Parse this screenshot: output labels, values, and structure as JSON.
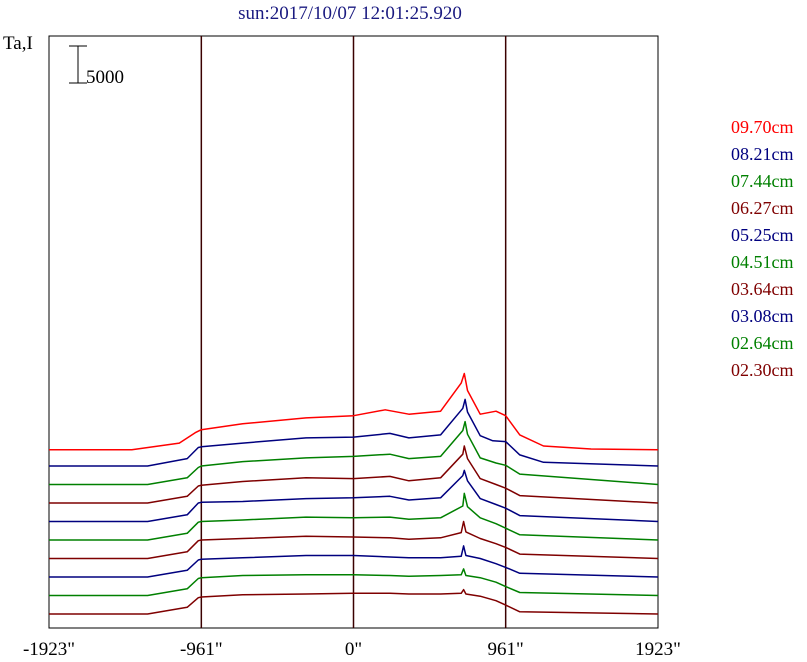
{
  "title": "sun:2017/10/07 12:01:25.920",
  "ylabel": "Ta,I",
  "scale_bar_label": "5000",
  "chart_data": {
    "type": "line",
    "title": "sun:2017/10/07 12:01:25.920",
    "ylabel": "Ta,I",
    "xlabel": "",
    "xlim": [
      -1923,
      1923
    ],
    "x_ticks": [
      {
        "value": -1923,
        "label": "-1923\""
      },
      {
        "value": -961,
        "label": "-961\""
      },
      {
        "value": 0,
        "label": "0\""
      },
      {
        "value": 961,
        "label": "961\""
      },
      {
        "value": 1923,
        "label": "1923\""
      }
    ],
    "vertical_lines": [
      -961,
      0,
      961
    ],
    "scale_bar": 5000,
    "grid": false,
    "legend_position": "right",
    "series": [
      {
        "name": "09.70cm",
        "color": "#ff0000",
        "offset": 20000,
        "points": [
          [
            -1923,
            0
          ],
          [
            -1400,
            0
          ],
          [
            -1100,
            900
          ],
          [
            -1000,
            2300
          ],
          [
            -961,
            2700
          ],
          [
            -700,
            3500
          ],
          [
            -300,
            4300
          ],
          [
            0,
            4600
          ],
          [
            200,
            5400
          ],
          [
            350,
            4800
          ],
          [
            550,
            5200
          ],
          [
            680,
            9000
          ],
          [
            700,
            10300
          ],
          [
            720,
            8000
          ],
          [
            800,
            4800
          ],
          [
            900,
            5200
          ],
          [
            961,
            4600
          ],
          [
            1050,
            2000
          ],
          [
            1200,
            500
          ],
          [
            1500,
            100
          ],
          [
            1923,
            0
          ]
        ]
      },
      {
        "name": "08.21cm",
        "color": "#00007f",
        "offset": 17800,
        "points": [
          [
            -1923,
            0
          ],
          [
            -1300,
            0
          ],
          [
            -1050,
            1000
          ],
          [
            -980,
            2500
          ],
          [
            -961,
            2600
          ],
          [
            -700,
            3100
          ],
          [
            -300,
            3800
          ],
          [
            0,
            3900
          ],
          [
            230,
            4400
          ],
          [
            350,
            3800
          ],
          [
            550,
            4200
          ],
          [
            690,
            7800
          ],
          [
            705,
            9000
          ],
          [
            720,
            7300
          ],
          [
            800,
            4100
          ],
          [
            880,
            3400
          ],
          [
            961,
            3300
          ],
          [
            1050,
            1500
          ],
          [
            1200,
            500
          ],
          [
            1923,
            0
          ]
        ]
      },
      {
        "name": "07.44cm",
        "color": "#008000",
        "offset": 15300,
        "points": [
          [
            -1923,
            0
          ],
          [
            -1300,
            0
          ],
          [
            -1050,
            900
          ],
          [
            -980,
            2300
          ],
          [
            -961,
            2500
          ],
          [
            -700,
            3100
          ],
          [
            -300,
            3600
          ],
          [
            0,
            3800
          ],
          [
            230,
            4100
          ],
          [
            350,
            3500
          ],
          [
            550,
            3800
          ],
          [
            690,
            7300
          ],
          [
            705,
            8500
          ],
          [
            720,
            6800
          ],
          [
            800,
            3600
          ],
          [
            900,
            2900
          ],
          [
            961,
            2600
          ],
          [
            1050,
            1400
          ],
          [
            1923,
            0
          ]
        ]
      },
      {
        "name": "06.27cm",
        "color": "#7f0000",
        "offset": 12800,
        "points": [
          [
            -1923,
            0
          ],
          [
            -1300,
            0
          ],
          [
            -1050,
            900
          ],
          [
            -980,
            2300
          ],
          [
            -961,
            2400
          ],
          [
            -700,
            2900
          ],
          [
            -300,
            3400
          ],
          [
            0,
            3300
          ],
          [
            230,
            3600
          ],
          [
            350,
            3000
          ],
          [
            550,
            3400
          ],
          [
            690,
            6600
          ],
          [
            700,
            7700
          ],
          [
            720,
            6000
          ],
          [
            800,
            3300
          ],
          [
            900,
            2500
          ],
          [
            961,
            2000
          ],
          [
            1050,
            1000
          ],
          [
            1923,
            0
          ]
        ]
      },
      {
        "name": "05.25cm",
        "color": "#00007f",
        "offset": 10300,
        "points": [
          [
            -1923,
            0
          ],
          [
            -1300,
            0
          ],
          [
            -1050,
            900
          ],
          [
            -980,
            2500
          ],
          [
            -961,
            2600
          ],
          [
            -700,
            2700
          ],
          [
            -300,
            3100
          ],
          [
            0,
            3200
          ],
          [
            230,
            3400
          ],
          [
            350,
            2900
          ],
          [
            550,
            3200
          ],
          [
            690,
            6200
          ],
          [
            700,
            6900
          ],
          [
            720,
            5500
          ],
          [
            800,
            3100
          ],
          [
            900,
            2300
          ],
          [
            961,
            1800
          ],
          [
            1050,
            800
          ],
          [
            1923,
            0
          ]
        ]
      },
      {
        "name": "04.51cm",
        "color": "#008000",
        "offset": 7800,
        "points": [
          [
            -1923,
            0
          ],
          [
            -1300,
            0
          ],
          [
            -1050,
            900
          ],
          [
            -980,
            2400
          ],
          [
            -961,
            2500
          ],
          [
            -700,
            2700
          ],
          [
            -300,
            3100
          ],
          [
            0,
            3000
          ],
          [
            230,
            3100
          ],
          [
            350,
            2800
          ],
          [
            550,
            3000
          ],
          [
            690,
            4600
          ],
          [
            700,
            6300
          ],
          [
            720,
            4500
          ],
          [
            800,
            3000
          ],
          [
            900,
            2200
          ],
          [
            961,
            1600
          ],
          [
            1050,
            700
          ],
          [
            1923,
            0
          ]
        ]
      },
      {
        "name": "03.64cm",
        "color": "#7f0000",
        "offset": 5300,
        "points": [
          [
            -1923,
            0
          ],
          [
            -1300,
            0
          ],
          [
            -1050,
            900
          ],
          [
            -980,
            2400
          ],
          [
            -961,
            2500
          ],
          [
            -700,
            2700
          ],
          [
            -300,
            3000
          ],
          [
            0,
            2900
          ],
          [
            230,
            2800
          ],
          [
            350,
            2600
          ],
          [
            550,
            2800
          ],
          [
            680,
            3500
          ],
          [
            695,
            5000
          ],
          [
            710,
            3600
          ],
          [
            800,
            2700
          ],
          [
            900,
            2000
          ],
          [
            961,
            1500
          ],
          [
            1050,
            600
          ],
          [
            1923,
            0
          ]
        ]
      },
      {
        "name": "03.08cm",
        "color": "#00007f",
        "offset": 2800,
        "points": [
          [
            -1923,
            0
          ],
          [
            -1300,
            0
          ],
          [
            -1050,
            900
          ],
          [
            -980,
            2300
          ],
          [
            -961,
            2400
          ],
          [
            -700,
            2600
          ],
          [
            -300,
            2900
          ],
          [
            0,
            2900
          ],
          [
            230,
            2700
          ],
          [
            350,
            2600
          ],
          [
            550,
            2600
          ],
          [
            680,
            2800
          ],
          [
            695,
            4200
          ],
          [
            710,
            2900
          ],
          [
            800,
            2500
          ],
          [
            900,
            1800
          ],
          [
            961,
            1300
          ],
          [
            1050,
            500
          ],
          [
            1923,
            0
          ]
        ]
      },
      {
        "name": "02.64cm",
        "color": "#008000",
        "offset": 300,
        "points": [
          [
            -1923,
            0
          ],
          [
            -1300,
            0
          ],
          [
            -1050,
            900
          ],
          [
            -980,
            2300
          ],
          [
            -961,
            2400
          ],
          [
            -700,
            2700
          ],
          [
            -300,
            2800
          ],
          [
            0,
            2800
          ],
          [
            230,
            2700
          ],
          [
            350,
            2600
          ],
          [
            550,
            2700
          ],
          [
            680,
            2800
          ],
          [
            695,
            3600
          ],
          [
            710,
            2700
          ],
          [
            800,
            2400
          ],
          [
            900,
            1800
          ],
          [
            961,
            1200
          ],
          [
            1050,
            400
          ],
          [
            1923,
            0
          ]
        ]
      },
      {
        "name": "02.30cm",
        "color": "#7f0000",
        "offset": -2200,
        "points": [
          [
            -1923,
            0
          ],
          [
            -1300,
            0
          ],
          [
            -1050,
            900
          ],
          [
            -980,
            2200
          ],
          [
            -961,
            2300
          ],
          [
            -700,
            2600
          ],
          [
            -300,
            2700
          ],
          [
            0,
            2800
          ],
          [
            230,
            2800
          ],
          [
            350,
            2700
          ],
          [
            550,
            2700
          ],
          [
            680,
            2800
          ],
          [
            695,
            3300
          ],
          [
            710,
            2700
          ],
          [
            800,
            2400
          ],
          [
            900,
            1800
          ],
          [
            961,
            1200
          ],
          [
            1050,
            300
          ],
          [
            1923,
            0
          ]
        ]
      }
    ]
  }
}
